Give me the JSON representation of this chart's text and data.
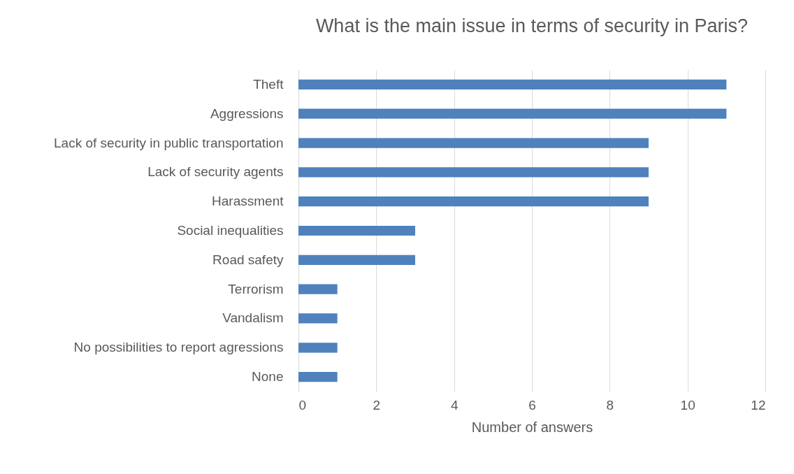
{
  "chart_data": {
    "type": "bar",
    "orientation": "horizontal",
    "title": "What is the main issue in terms of security in Paris?",
    "xlabel": "Number of answers",
    "categories": [
      "Theft",
      "Aggressions",
      "Lack of security in public transportation",
      "Lack of security agents",
      "Harassment",
      "Social inequalities",
      "Road safety",
      "Terrorism",
      "Vandalism",
      "No possibilities to report agressions",
      "None"
    ],
    "values": [
      11,
      11,
      9,
      9,
      9,
      3,
      3,
      1,
      1,
      1,
      1
    ],
    "color": "#4f81bd",
    "xlim": [
      0,
      12
    ],
    "xticks": [
      0,
      2,
      4,
      6,
      8,
      10,
      12
    ],
    "grid": "x"
  }
}
